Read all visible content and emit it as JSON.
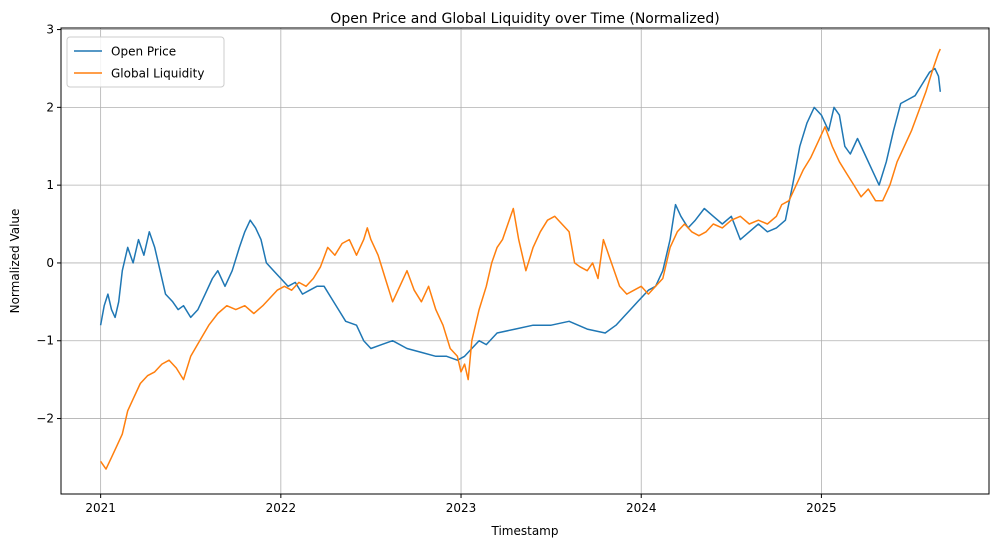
{
  "chart_data": {
    "type": "line",
    "title": "Open Price and Global Liquidity over Time (Normalized)",
    "xlabel": "Timestamp",
    "ylabel": "Normalized Value",
    "xlim": [
      2020.78,
      2025.93
    ],
    "ylim": [
      -2.97,
      3.02
    ],
    "x_ticks": [
      2021,
      2022,
      2023,
      2024,
      2025
    ],
    "x_tick_labels": [
      "2021",
      "2022",
      "2023",
      "2024",
      "2025"
    ],
    "y_ticks": [
      -2,
      -1,
      0,
      1,
      2,
      3
    ],
    "y_tick_labels": [
      "−2",
      "−1",
      "0",
      "1",
      "2",
      "3"
    ],
    "grid": true,
    "legend_position": "top-left",
    "series": [
      {
        "name": "Open Price",
        "color": "#1f77b4",
        "points": [
          [
            2021.0,
            -0.8
          ],
          [
            2021.02,
            -0.55
          ],
          [
            2021.04,
            -0.4
          ],
          [
            2021.06,
            -0.6
          ],
          [
            2021.08,
            -0.7
          ],
          [
            2021.1,
            -0.5
          ],
          [
            2021.12,
            -0.1
          ],
          [
            2021.15,
            0.2
          ],
          [
            2021.18,
            0.0
          ],
          [
            2021.21,
            0.3
          ],
          [
            2021.24,
            0.1
          ],
          [
            2021.27,
            0.4
          ],
          [
            2021.3,
            0.2
          ],
          [
            2021.33,
            -0.1
          ],
          [
            2021.36,
            -0.4
          ],
          [
            2021.4,
            -0.5
          ],
          [
            2021.43,
            -0.6
          ],
          [
            2021.46,
            -0.55
          ],
          [
            2021.5,
            -0.7
          ],
          [
            2021.54,
            -0.6
          ],
          [
            2021.58,
            -0.4
          ],
          [
            2021.62,
            -0.2
          ],
          [
            2021.65,
            -0.1
          ],
          [
            2021.69,
            -0.3
          ],
          [
            2021.73,
            -0.1
          ],
          [
            2021.77,
            0.2
          ],
          [
            2021.8,
            0.4
          ],
          [
            2021.83,
            0.55
          ],
          [
            2021.86,
            0.45
          ],
          [
            2021.89,
            0.3
          ],
          [
            2021.92,
            0.0
          ],
          [
            2021.96,
            -0.1
          ],
          [
            2022.0,
            -0.2
          ],
          [
            2022.04,
            -0.3
          ],
          [
            2022.08,
            -0.25
          ],
          [
            2022.12,
            -0.4
          ],
          [
            2022.16,
            -0.35
          ],
          [
            2022.2,
            -0.3
          ],
          [
            2022.24,
            -0.3
          ],
          [
            2022.28,
            -0.45
          ],
          [
            2022.32,
            -0.6
          ],
          [
            2022.36,
            -0.75
          ],
          [
            2022.42,
            -0.8
          ],
          [
            2022.46,
            -1.0
          ],
          [
            2022.5,
            -1.1
          ],
          [
            2022.56,
            -1.05
          ],
          [
            2022.62,
            -1.0
          ],
          [
            2022.7,
            -1.1
          ],
          [
            2022.78,
            -1.15
          ],
          [
            2022.86,
            -1.2
          ],
          [
            2022.92,
            -1.2
          ],
          [
            2022.98,
            -1.25
          ],
          [
            2023.02,
            -1.2
          ],
          [
            2023.06,
            -1.1
          ],
          [
            2023.1,
            -1.0
          ],
          [
            2023.14,
            -1.05
          ],
          [
            2023.2,
            -0.9
          ],
          [
            2023.3,
            -0.85
          ],
          [
            2023.4,
            -0.8
          ],
          [
            2023.5,
            -0.8
          ],
          [
            2023.6,
            -0.75
          ],
          [
            2023.7,
            -0.85
          ],
          [
            2023.8,
            -0.9
          ],
          [
            2023.86,
            -0.8
          ],
          [
            2023.9,
            -0.7
          ],
          [
            2023.94,
            -0.6
          ],
          [
            2023.98,
            -0.5
          ],
          [
            2024.04,
            -0.35
          ],
          [
            2024.08,
            -0.3
          ],
          [
            2024.12,
            -0.1
          ],
          [
            2024.16,
            0.3
          ],
          [
            2024.19,
            0.75
          ],
          [
            2024.22,
            0.6
          ],
          [
            2024.26,
            0.45
          ],
          [
            2024.3,
            0.55
          ],
          [
            2024.35,
            0.7
          ],
          [
            2024.4,
            0.6
          ],
          [
            2024.45,
            0.5
          ],
          [
            2024.5,
            0.6
          ],
          [
            2024.55,
            0.3
          ],
          [
            2024.6,
            0.4
          ],
          [
            2024.65,
            0.5
          ],
          [
            2024.7,
            0.4
          ],
          [
            2024.75,
            0.45
          ],
          [
            2024.8,
            0.55
          ],
          [
            2024.84,
            1.0
          ],
          [
            2024.88,
            1.5
          ],
          [
            2024.92,
            1.8
          ],
          [
            2024.96,
            2.0
          ],
          [
            2025.0,
            1.9
          ],
          [
            2025.04,
            1.7
          ],
          [
            2025.07,
            2.0
          ],
          [
            2025.1,
            1.9
          ],
          [
            2025.13,
            1.5
          ],
          [
            2025.16,
            1.4
          ],
          [
            2025.2,
            1.6
          ],
          [
            2025.24,
            1.4
          ],
          [
            2025.28,
            1.2
          ],
          [
            2025.32,
            1.0
          ],
          [
            2025.36,
            1.3
          ],
          [
            2025.4,
            1.7
          ],
          [
            2025.44,
            2.05
          ],
          [
            2025.48,
            2.1
          ],
          [
            2025.52,
            2.15
          ],
          [
            2025.56,
            2.3
          ],
          [
            2025.6,
            2.45
          ],
          [
            2025.63,
            2.5
          ],
          [
            2025.65,
            2.4
          ],
          [
            2025.66,
            2.2
          ]
        ]
      },
      {
        "name": "Global Liquidity",
        "color": "#ff7f0e",
        "points": [
          [
            2021.0,
            -2.55
          ],
          [
            2021.03,
            -2.65
          ],
          [
            2021.06,
            -2.5
          ],
          [
            2021.09,
            -2.35
          ],
          [
            2021.12,
            -2.2
          ],
          [
            2021.15,
            -1.9
          ],
          [
            2021.18,
            -1.75
          ],
          [
            2021.22,
            -1.55
          ],
          [
            2021.26,
            -1.45
          ],
          [
            2021.3,
            -1.4
          ],
          [
            2021.34,
            -1.3
          ],
          [
            2021.38,
            -1.25
          ],
          [
            2021.42,
            -1.35
          ],
          [
            2021.46,
            -1.5
          ],
          [
            2021.5,
            -1.2
          ],
          [
            2021.55,
            -1.0
          ],
          [
            2021.6,
            -0.8
          ],
          [
            2021.65,
            -0.65
          ],
          [
            2021.7,
            -0.55
          ],
          [
            2021.75,
            -0.6
          ],
          [
            2021.8,
            -0.55
          ],
          [
            2021.85,
            -0.65
          ],
          [
            2021.9,
            -0.55
          ],
          [
            2021.94,
            -0.45
          ],
          [
            2021.98,
            -0.35
          ],
          [
            2022.02,
            -0.3
          ],
          [
            2022.06,
            -0.35
          ],
          [
            2022.1,
            -0.25
          ],
          [
            2022.14,
            -0.3
          ],
          [
            2022.18,
            -0.2
          ],
          [
            2022.22,
            -0.05
          ],
          [
            2022.26,
            0.2
          ],
          [
            2022.3,
            0.1
          ],
          [
            2022.34,
            0.25
          ],
          [
            2022.38,
            0.3
          ],
          [
            2022.42,
            0.1
          ],
          [
            2022.46,
            0.3
          ],
          [
            2022.48,
            0.45
          ],
          [
            2022.5,
            0.3
          ],
          [
            2022.54,
            0.1
          ],
          [
            2022.58,
            -0.2
          ],
          [
            2022.62,
            -0.5
          ],
          [
            2022.66,
            -0.3
          ],
          [
            2022.7,
            -0.1
          ],
          [
            2022.74,
            -0.35
          ],
          [
            2022.78,
            -0.5
          ],
          [
            2022.82,
            -0.3
          ],
          [
            2022.86,
            -0.6
          ],
          [
            2022.9,
            -0.8
          ],
          [
            2022.94,
            -1.1
          ],
          [
            2022.98,
            -1.2
          ],
          [
            2023.0,
            -1.4
          ],
          [
            2023.02,
            -1.3
          ],
          [
            2023.04,
            -1.5
          ],
          [
            2023.06,
            -1.0
          ],
          [
            2023.1,
            -0.6
          ],
          [
            2023.14,
            -0.3
          ],
          [
            2023.17,
            0.0
          ],
          [
            2023.2,
            0.2
          ],
          [
            2023.23,
            0.3
          ],
          [
            2023.26,
            0.5
          ],
          [
            2023.29,
            0.7
          ],
          [
            2023.32,
            0.3
          ],
          [
            2023.36,
            -0.1
          ],
          [
            2023.4,
            0.2
          ],
          [
            2023.44,
            0.4
          ],
          [
            2023.48,
            0.55
          ],
          [
            2023.52,
            0.6
          ],
          [
            2023.56,
            0.5
          ],
          [
            2023.6,
            0.4
          ],
          [
            2023.63,
            0.0
          ],
          [
            2023.66,
            -0.05
          ],
          [
            2023.7,
            -0.1
          ],
          [
            2023.73,
            0.0
          ],
          [
            2023.76,
            -0.2
          ],
          [
            2023.79,
            0.3
          ],
          [
            2023.82,
            0.1
          ],
          [
            2023.85,
            -0.1
          ],
          [
            2023.88,
            -0.3
          ],
          [
            2023.92,
            -0.4
          ],
          [
            2023.96,
            -0.35
          ],
          [
            2024.0,
            -0.3
          ],
          [
            2024.04,
            -0.4
          ],
          [
            2024.08,
            -0.3
          ],
          [
            2024.12,
            -0.2
          ],
          [
            2024.16,
            0.2
          ],
          [
            2024.2,
            0.4
          ],
          [
            2024.24,
            0.5
          ],
          [
            2024.28,
            0.4
          ],
          [
            2024.32,
            0.35
          ],
          [
            2024.36,
            0.4
          ],
          [
            2024.4,
            0.5
          ],
          [
            2024.45,
            0.45
          ],
          [
            2024.5,
            0.55
          ],
          [
            2024.55,
            0.6
          ],
          [
            2024.6,
            0.5
          ],
          [
            2024.65,
            0.55
          ],
          [
            2024.7,
            0.5
          ],
          [
            2024.75,
            0.6
          ],
          [
            2024.78,
            0.75
          ],
          [
            2024.82,
            0.8
          ],
          [
            2024.86,
            1.0
          ],
          [
            2024.9,
            1.2
          ],
          [
            2024.94,
            1.35
          ],
          [
            2024.98,
            1.55
          ],
          [
            2025.02,
            1.75
          ],
          [
            2025.06,
            1.5
          ],
          [
            2025.1,
            1.3
          ],
          [
            2025.14,
            1.15
          ],
          [
            2025.18,
            1.0
          ],
          [
            2025.22,
            0.85
          ],
          [
            2025.26,
            0.95
          ],
          [
            2025.3,
            0.8
          ],
          [
            2025.34,
            0.8
          ],
          [
            2025.38,
            1.0
          ],
          [
            2025.42,
            1.3
          ],
          [
            2025.46,
            1.5
          ],
          [
            2025.5,
            1.7
          ],
          [
            2025.54,
            1.95
          ],
          [
            2025.58,
            2.2
          ],
          [
            2025.62,
            2.5
          ],
          [
            2025.65,
            2.7
          ],
          [
            2025.66,
            2.75
          ]
        ]
      }
    ]
  }
}
